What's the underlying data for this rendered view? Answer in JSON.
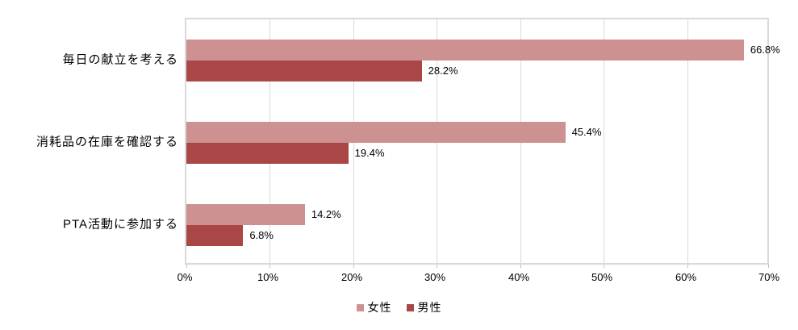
{
  "chart_data": {
    "type": "bar",
    "orientation": "horizontal",
    "title": "",
    "xlabel": "",
    "ylabel": "",
    "categories": [
      "毎日の献立を考える",
      "消耗品の在庫を確認する",
      "PTA活動に参加する"
    ],
    "series": [
      {
        "name": "女性",
        "color": "#ce9192",
        "values": [
          66.8,
          45.4,
          14.2
        ],
        "labels": [
          "66.8%",
          "45.4%",
          "14.2%"
        ]
      },
      {
        "name": "男性",
        "color": "#a94747",
        "values": [
          28.2,
          19.4,
          6.8
        ],
        "labels": [
          "28.2%",
          "19.4%",
          "6.8%"
        ]
      }
    ],
    "xlim": [
      0,
      70
    ],
    "x_tick_step": 10,
    "x_ticks": [
      "0%",
      "10%",
      "20%",
      "30%",
      "40%",
      "50%",
      "60%",
      "70%"
    ],
    "grid": true,
    "legend_position": "bottom"
  },
  "colors": {
    "background": "#ffffff",
    "gridline": "#d9d9d9",
    "plot_border": "#d9d9d9",
    "text": "#000000"
  }
}
